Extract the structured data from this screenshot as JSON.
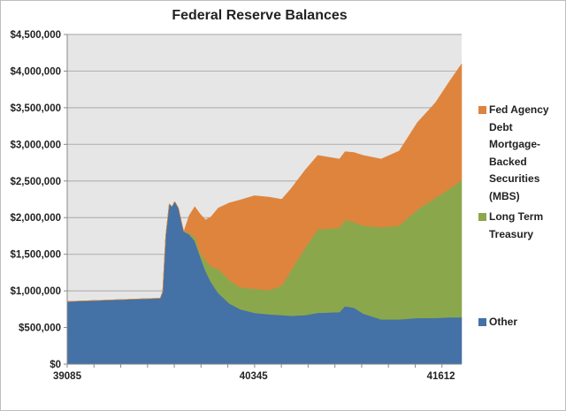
{
  "chart_data": {
    "type": "area",
    "stacked": true,
    "title": "Federal Reserve Balances",
    "xlabel": "",
    "ylabel": "",
    "xlim": [
      39085,
      41752
    ],
    "ylim": [
      0,
      4500000
    ],
    "y_ticks": [
      "$0",
      "$500,000",
      "$1,000,000",
      "$1,500,000",
      "$2,000,000",
      "$2,500,000",
      "$3,000,000",
      "$3,500,000",
      "$4,000,000",
      "$4,500,000"
    ],
    "x_tick_labels": [
      "39085",
      "40345",
      "41612"
    ],
    "grid": true,
    "legend_position": "right",
    "x": [
      39085,
      39714,
      39731,
      39751,
      39775,
      39793,
      39812,
      39837,
      39861,
      39873,
      39910,
      39947,
      39984,
      40020,
      40057,
      40106,
      40180,
      40253,
      40351,
      40449,
      40535,
      40596,
      40694,
      40779,
      40926,
      40963,
      41024,
      41086,
      41208,
      41330,
      41453,
      41575,
      41673,
      41752
    ],
    "series": [
      {
        "name": "Other",
        "color": "#4471a6",
        "values": [
          855000,
          900000,
          990000,
          1750000,
          2190000,
          2150000,
          2220000,
          2130000,
          1910000,
          1810000,
          1770000,
          1680000,
          1470000,
          1270000,
          1120000,
          970000,
          830000,
          750000,
          700000,
          680000,
          670000,
          660000,
          670000,
          700000,
          710000,
          790000,
          770000,
          690000,
          610000,
          610000,
          630000,
          630000,
          640000,
          640000
        ]
      },
      {
        "name": "Long Term Treasury",
        "color": "#8ba74c",
        "values": [
          0,
          0,
          0,
          0,
          0,
          0,
          0,
          0,
          0,
          0,
          20000,
          60000,
          50000,
          150000,
          210000,
          330000,
          320000,
          300000,
          330000,
          330000,
          400000,
          610000,
          920000,
          1140000,
          1150000,
          1180000,
          1170000,
          1200000,
          1260000,
          1280000,
          1480000,
          1640000,
          1760000,
          1870000
        ]
      },
      {
        "name": "Fed Agency Debt Mortgage-Backed Securities (MBS)",
        "color": "#df843d",
        "values": [
          0,
          0,
          0,
          0,
          0,
          0,
          0,
          0,
          0,
          0,
          240000,
          410000,
          530000,
          550000,
          680000,
          830000,
          1050000,
          1190000,
          1270000,
          1270000,
          1180000,
          1120000,
          1060000,
          1010000,
          940000,
          930000,
          950000,
          960000,
          930000,
          1020000,
          1190000,
          1300000,
          1470000,
          1590000
        ]
      }
    ]
  }
}
